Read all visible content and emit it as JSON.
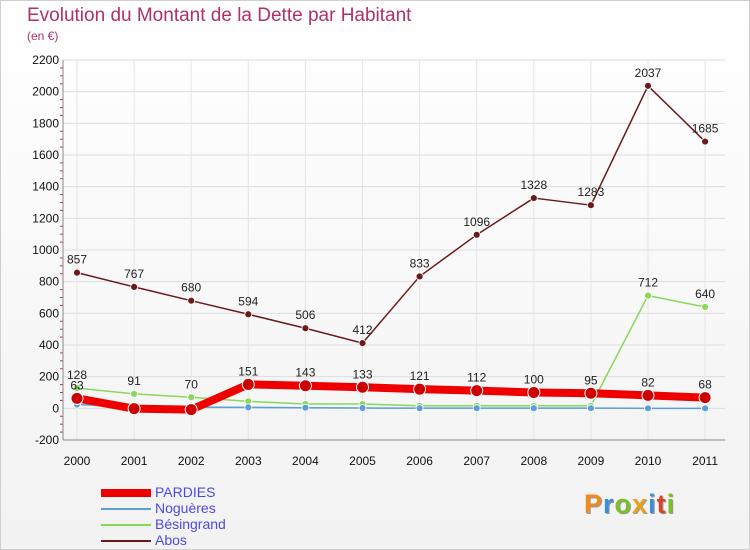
{
  "title": "Evolution du Montant de la Dette par Habitant",
  "subtitle": "(en €)",
  "brand": {
    "letters": [
      "P",
      "r",
      "o",
      "x",
      "i",
      "t",
      "i"
    ],
    "colors": [
      "#f08a1c",
      "#3a8fd6",
      "#7bbf2a",
      "#e8a21c",
      "#3a8fd6",
      "#d6452a",
      "#7bbf2a"
    ]
  },
  "chart_data": {
    "type": "line",
    "title": "Evolution du Montant de la Dette par Habitant",
    "ylabel": "(en €)",
    "x": [
      "2000",
      "2001",
      "2002",
      "2003",
      "2004",
      "2005",
      "2006",
      "2007",
      "2008",
      "2009",
      "2010",
      "2011"
    ],
    "ylim": [
      -200,
      2200
    ],
    "yticks": [
      "-200",
      "0",
      "200",
      "400",
      "600",
      "800",
      "1000",
      "1200",
      "1400",
      "1600",
      "1800",
      "2000",
      "2200"
    ],
    "grid": true,
    "legend_position": "bottom-left",
    "series": [
      {
        "name": "Abos",
        "color": "#6b1a1a",
        "values": [
          857,
          767,
          680,
          594,
          506,
          412,
          833,
          1096,
          1328,
          1283,
          2037,
          1685
        ],
        "labels": [
          "857",
          "767",
          "680",
          "594",
          "506",
          "412",
          "833",
          "1096",
          "1328",
          "1283",
          "2037",
          "1685"
        ]
      },
      {
        "name": "Bésingrand",
        "color": "#88d85a",
        "values": [
          128,
          91,
          70,
          44,
          27,
          27,
          16,
          16,
          16,
          16,
          712,
          640
        ],
        "labels": [
          "128",
          "91",
          "70",
          "",
          "",
          "",
          "",
          "",
          "",
          "",
          "712",
          "640"
        ]
      },
      {
        "name": "Noguères",
        "color": "#5a9fd8",
        "values": [
          24,
          10,
          8,
          6,
          4,
          2,
          1,
          1,
          1,
          1,
          0,
          0
        ],
        "labels": [
          "",
          "",
          "",
          "",
          "",
          "",
          "",
          "",
          "",
          "",
          "",
          ""
        ]
      },
      {
        "name": "PARDIES",
        "color": "#ee0000",
        "values": [
          63,
          -2,
          -8,
          151,
          143,
          133,
          121,
          112,
          100,
          95,
          82,
          68
        ],
        "labels": [
          "63",
          "",
          "",
          "151",
          "143",
          "133",
          "121",
          "112",
          "100",
          "95",
          "82",
          "68"
        ]
      }
    ]
  },
  "legend": [
    {
      "name": "PARDIES",
      "color": "#ee0000"
    },
    {
      "name": "Noguères",
      "color": "#5a9fd8"
    },
    {
      "name": "Bésingrand",
      "color": "#88d85a"
    },
    {
      "name": "Abos",
      "color": "#6b1a1a"
    }
  ]
}
